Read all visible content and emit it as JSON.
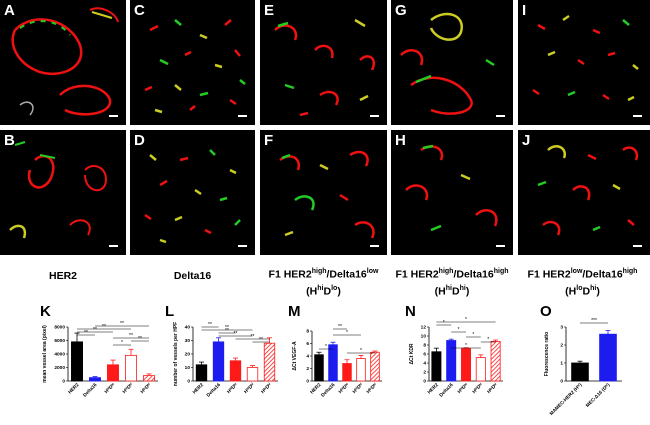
{
  "panels": [
    {
      "id": "A",
      "label": "A"
    },
    {
      "id": "B",
      "label": "B"
    },
    {
      "id": "C",
      "label": "C"
    },
    {
      "id": "D",
      "label": "D"
    },
    {
      "id": "E",
      "label": "E"
    },
    {
      "id": "F",
      "label": "F"
    },
    {
      "id": "G",
      "label": "G"
    },
    {
      "id": "H",
      "label": "H"
    },
    {
      "id": "I",
      "label": "I"
    },
    {
      "id": "J",
      "label": "J"
    }
  ],
  "column_labels": {
    "c1": "HER2",
    "c2": "Delta16",
    "c3": {
      "pre": "F1 HER2",
      "s1": "high",
      "mid": "/Delta16",
      "s2": "low",
      "l2pre": "(H",
      "l2s1": "hi",
      "l2mid": "D",
      "l2s2": "lo",
      "l2post": ")"
    },
    "c4": {
      "pre": "F1 HER2",
      "s1": "high",
      "mid": "/Delta16",
      "s2": "high",
      "l2pre": "(H",
      "l2s1": "hi",
      "l2mid": "D",
      "l2s2": "hi",
      "l2post": ")"
    },
    "c5": {
      "pre": "F1 HER2",
      "s1": "low",
      "mid": "/Delta16",
      "s2": "high",
      "l2pre": "(H",
      "l2s1": "lo",
      "l2mid": "D",
      "l2s2": "hi",
      "l2post": ")"
    }
  },
  "colors": {
    "HER2": "#000000",
    "Delta16": "#1c1cf0",
    "HhiDlo": "#ff1a1a",
    "HhiDhi": "#ff1a1a",
    "HloDhi": "#ff1a1a"
  },
  "chart_data": [
    {
      "panel": "K",
      "type": "bar",
      "ylabel": "mean vessel area (pixel)",
      "categories": [
        "HER2",
        "Delta16",
        "HhiDlo",
        "HhiDhi",
        "HloDhi"
      ],
      "values": [
        5800,
        500,
        2400,
        3800,
        800
      ],
      "errors": [
        1300,
        150,
        700,
        900,
        250
      ],
      "ylim": [
        0,
        8000
      ],
      "yticks": [
        "0",
        "2000",
        "4000",
        "6000",
        "8000"
      ],
      "significance": [
        "**",
        "**",
        "**",
        "**",
        "**",
        "**",
        "*"
      ]
    },
    {
      "panel": "L",
      "type": "bar",
      "ylabel": "number of vessels per HPF",
      "categories": [
        "HER2",
        "Delta16",
        "HhiDlo",
        "HhiDhi",
        "HloDhi"
      ],
      "values": [
        12,
        29,
        15,
        10,
        28
      ],
      "errors": [
        2,
        3,
        2,
        1.5,
        4
      ],
      "ylim": [
        0,
        40
      ],
      "yticks": [
        "0",
        "10",
        "20",
        "30",
        "40"
      ],
      "significance": [
        "**",
        "**",
        "**",
        "**",
        "**",
        "**"
      ]
    },
    {
      "panel": "M",
      "type": "bar",
      "ylabel": "ΔCt VEGF-A",
      "categories": [
        "HER2",
        "Delta16",
        "HhiDlo",
        "HhiDhi",
        "HloDhi"
      ],
      "values": [
        4.2,
        5.8,
        2.8,
        3.6,
        4.6
      ],
      "errors": [
        0.4,
        0.4,
        0.6,
        0.5,
        0.2
      ],
      "ylim": [
        0,
        8
      ],
      "yticks": [
        "0",
        "2",
        "4",
        "6",
        "8"
      ],
      "significance": [
        "**",
        "*",
        "*",
        "*"
      ]
    },
    {
      "panel": "N",
      "type": "bar",
      "ylabel": "ΔCt KDR",
      "categories": [
        "HER2",
        "Delta16",
        "HhiDlo",
        "HhiDhi",
        "HloDhi"
      ],
      "values": [
        6.5,
        9.0,
        7.2,
        5.2,
        8.8
      ],
      "errors": [
        0.8,
        0.3,
        0.2,
        0.6,
        0.3
      ],
      "ylim": [
        0,
        12
      ],
      "yticks": [
        "0",
        "2",
        "4",
        "6",
        "8",
        "10",
        "12"
      ],
      "significance": [
        "*",
        "*",
        "*",
        "*",
        "*",
        "*"
      ]
    },
    {
      "panel": "O",
      "type": "bar",
      "ylabel": "Fluorescence ratio",
      "categories": [
        "MAMEC-HER2 (Hʰⁱ)",
        "MEC-Δ16 (Dʰⁱ)"
      ],
      "values": [
        1.0,
        2.6
      ],
      "errors": [
        0.1,
        0.2
      ],
      "ylim": [
        0,
        3
      ],
      "yticks": [
        "0",
        "1",
        "2",
        "3"
      ],
      "significance": [
        "***"
      ]
    }
  ],
  "tick_labels": {
    "HER2": "HER2",
    "Delta16": "Delta16",
    "HhiDlo": "HʰⁱDˡᵒ",
    "HhiDhi": "HʰⁱDʰⁱ",
    "HloDhi": "HˡᵒDʰⁱ",
    "O1": "MAMEC-HER2 (Hʰⁱ)",
    "O2": "MEC-Δ16 (Dʰⁱ)"
  },
  "chart_labels": {
    "K": "K",
    "L": "L",
    "M": "M",
    "N": "N",
    "O": "O"
  }
}
